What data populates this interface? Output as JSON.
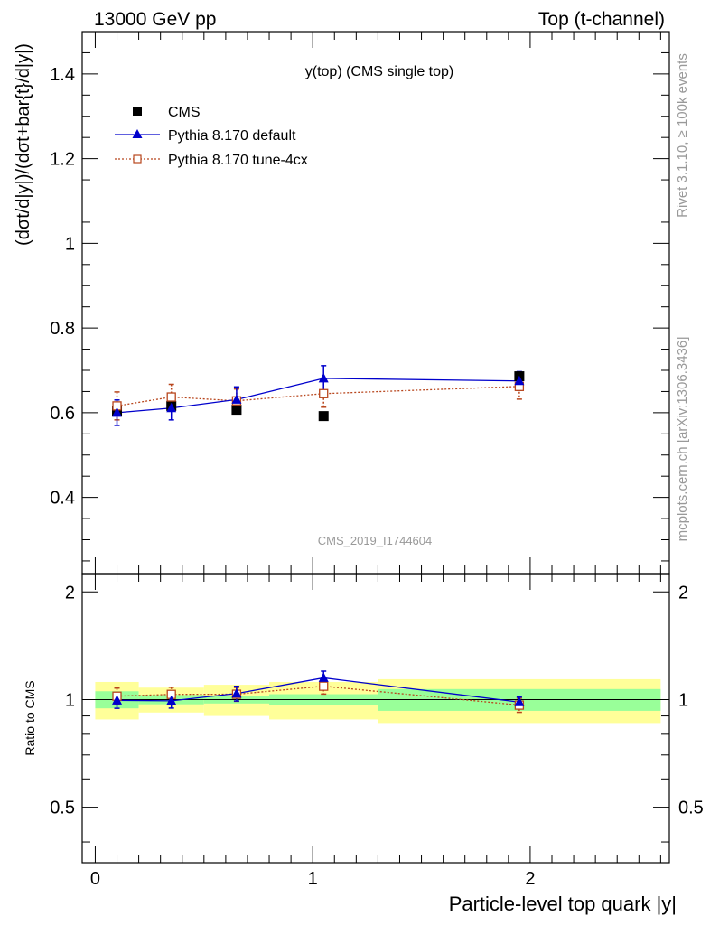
{
  "header": {
    "left": "13000 GeV pp",
    "right": "Top (t-channel)"
  },
  "side_text": {
    "top": "Rivet 3.1.10, ≥ 100k events",
    "bottom": "mcplots.cern.ch [arXiv:1306.3436]"
  },
  "chart_data": {
    "type": "scatter",
    "title": "y(top) (CMS single top)",
    "analysis_tag": "CMS_2019_I1744604",
    "xlabel": "Particle-level top quark |y|",
    "ylabel": "(dσt/d|y|)/(dσt+bar{t}/d|y|)",
    "ratio_ylabel": "Ratio to CMS",
    "xlim": [
      -0.06,
      2.64
    ],
    "ylim": [
      0.22,
      1.5
    ],
    "ratio_ylim": [
      0.35,
      2.25
    ],
    "x_ticks": [
      "0",
      "1",
      "2"
    ],
    "y_ticks": [
      "0.4",
      "0.6",
      "0.8",
      "1",
      "1.2",
      "1.4"
    ],
    "ratio_ticks": [
      "0.5",
      "1",
      "2"
    ],
    "legend_position": "top-left",
    "bin_edges": [
      0,
      0.2,
      0.5,
      0.8,
      1.3,
      2.6
    ],
    "x": [
      0.1,
      0.35,
      0.65,
      1.05,
      1.95
    ],
    "series": [
      {
        "name": "CMS",
        "color": "#000000",
        "marker": "square",
        "values": [
          0.603,
          0.616,
          0.607,
          0.592,
          0.686
        ],
        "ratio_band_inner": [
          0.055,
          0.03,
          0.025,
          0.035,
          0.07
        ],
        "ratio_band_outer": [
          0.12,
          0.08,
          0.1,
          0.12,
          0.14
        ]
      },
      {
        "name": "Pythia 8.170 default",
        "color": "#0000cc",
        "marker": "triangle",
        "line": "solid",
        "values": [
          0.6,
          0.611,
          0.631,
          0.681,
          0.675
        ],
        "errors": [
          0.03,
          0.028,
          0.03,
          0.03,
          0.022
        ],
        "ratio": [
          0.995,
          0.992,
          1.04,
          1.15,
          0.984
        ]
      },
      {
        "name": "Pythia 8.170 tune-4cx",
        "color": "#b8461d",
        "marker": "open-square",
        "line": "dotted",
        "values": [
          0.616,
          0.637,
          0.628,
          0.645,
          0.662
        ],
        "errors": [
          0.033,
          0.03,
          0.028,
          0.032,
          0.03
        ],
        "ratio": [
          1.022,
          1.034,
          1.035,
          1.09,
          0.965
        ]
      }
    ]
  }
}
